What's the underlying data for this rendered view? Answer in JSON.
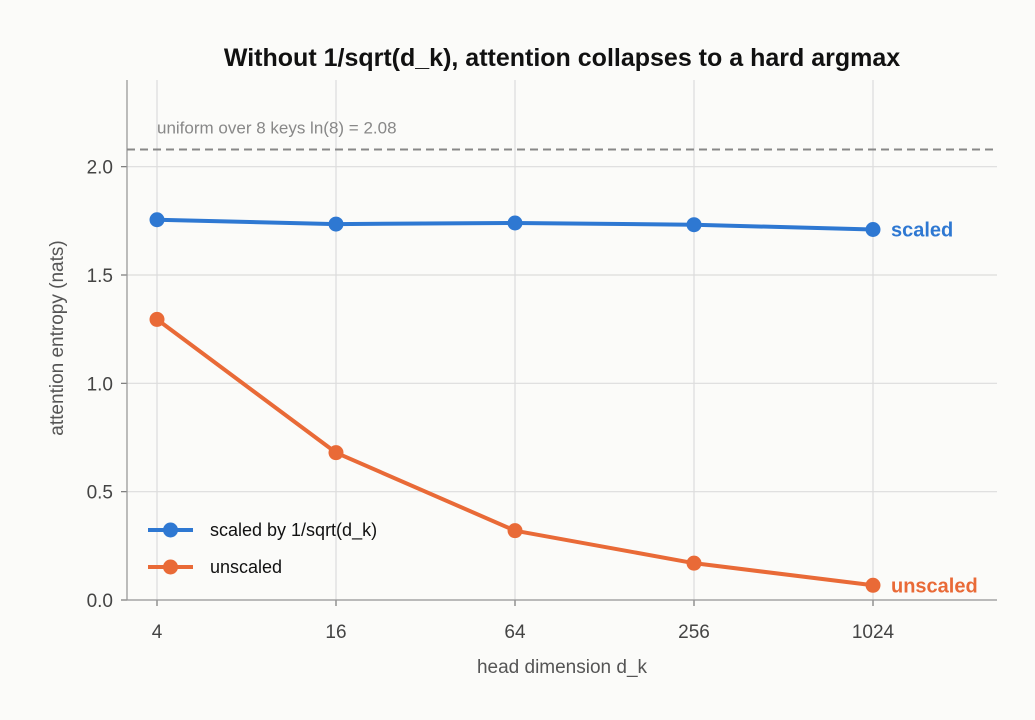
{
  "chart_data": {
    "type": "line",
    "title": "Without 1/sqrt(d_k), attention collapses to a hard argmax",
    "xlabel": "head dimension  d_k",
    "ylabel": "attention entropy (nats)",
    "x_scale": "log2",
    "categories": [
      "4",
      "16",
      "64",
      "256",
      "1024"
    ],
    "x": [
      4,
      16,
      64,
      256,
      1024
    ],
    "xlim": [
      4,
      1024
    ],
    "ylim": [
      0,
      2.4
    ],
    "y_ticks": [
      "0.0",
      "0.5",
      "1.0",
      "1.5",
      "2.0"
    ],
    "grid": true,
    "legend_position": "bottom-left",
    "series": [
      {
        "name": "scaled by 1/sqrt(d_k)",
        "end_label": "scaled",
        "color": "#2e78d2",
        "values": [
          1.755,
          1.735,
          1.74,
          1.732,
          1.71
        ]
      },
      {
        "name": "unscaled",
        "end_label": "unscaled",
        "color": "#e96a37",
        "values": [
          1.295,
          0.68,
          0.32,
          0.17,
          0.068
        ]
      }
    ],
    "reference_line": {
      "value": 2.079,
      "label": "uniform over 8 keys  ln(8) = 2.08",
      "color": "#888888",
      "style": "dashed"
    }
  }
}
